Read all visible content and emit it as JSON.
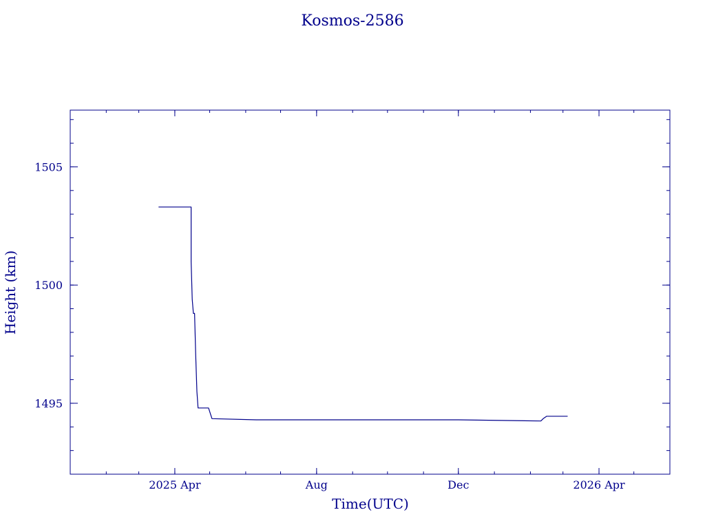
{
  "chart_data": {
    "type": "line",
    "title": "Kosmos-2586",
    "xlabel": "Time(UTC)",
    "ylabel": "Height (km)",
    "xlim": [
      "2025-01-01",
      "2026-06-01"
    ],
    "ylim": [
      1492.0,
      1507.4
    ],
    "x_ticks": [
      {
        "date": "2025-04-01",
        "label": "2025 Apr"
      },
      {
        "date": "2025-08-01",
        "label": "Aug"
      },
      {
        "date": "2025-12-01",
        "label": "Dec"
      },
      {
        "date": "2026-04-01",
        "label": "2026 Apr"
      }
    ],
    "y_ticks": [
      {
        "value": 1495,
        "label": "1495"
      },
      {
        "value": 1500,
        "label": "1500"
      },
      {
        "value": 1505,
        "label": "1505"
      }
    ],
    "grid": false,
    "series": [
      {
        "color": "#00008b",
        "points": [
          [
            "2025-03-18",
            1503.3
          ],
          [
            "2025-03-30",
            1503.3
          ],
          [
            "2025-04-15",
            1503.3
          ],
          [
            "2025-04-15",
            1501.0
          ],
          [
            "2025-04-16",
            1499.4
          ],
          [
            "2025-04-17",
            1498.8
          ],
          [
            "2025-04-18",
            1498.8
          ],
          [
            "2025-04-19",
            1497.0
          ],
          [
            "2025-04-20",
            1495.5
          ],
          [
            "2025-04-21",
            1494.8
          ],
          [
            "2025-04-30",
            1494.8
          ],
          [
            "2025-05-02",
            1494.5
          ],
          [
            "2025-05-03",
            1494.35
          ],
          [
            "2025-06-10",
            1494.3
          ],
          [
            "2025-12-01",
            1494.3
          ],
          [
            "2026-02-10",
            1494.25
          ],
          [
            "2026-02-12",
            1494.35
          ],
          [
            "2026-02-15",
            1494.45
          ],
          [
            "2026-03-05",
            1494.45
          ]
        ]
      }
    ]
  }
}
